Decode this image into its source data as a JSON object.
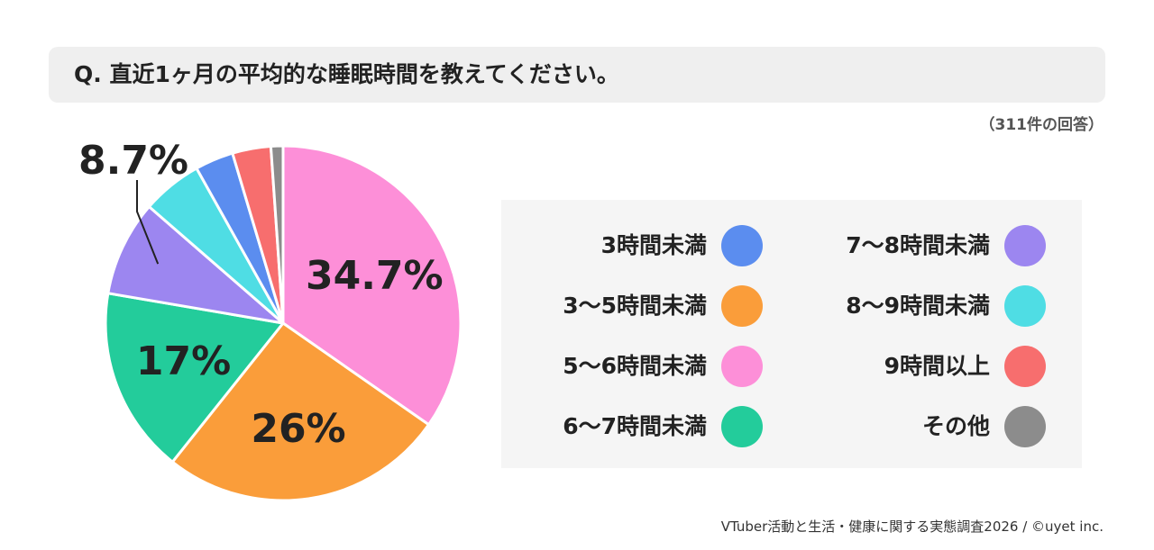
{
  "question": "Q. 直近1ヶ月の平均的な睡眠時間を教えてください。",
  "response_count": "（311件の回答）",
  "source": "VTuber活動と生活・健康に関する実態調査2026 / ©uyet inc.",
  "chart_data": {
    "type": "pie",
    "title": "",
    "categories": [
      "3時間未満",
      "3〜5時間未満",
      "5〜6時間未満",
      "6〜7時間未満",
      "7〜8時間未満",
      "8〜9時間未満",
      "9時間以上",
      "その他"
    ],
    "values": [
      3.5,
      26,
      34.7,
      17,
      8.7,
      5.5,
      3.5,
      1.1
    ],
    "colors": [
      "#5b8def",
      "#fa9d3a",
      "#fd8fd8",
      "#23cc9b",
      "#9c86f0",
      "#4fdde4",
      "#f76e6e",
      "#8c8c8c"
    ],
    "slice_labels": [
      {
        "category": "5〜6時間未満",
        "text": "34.7%"
      },
      {
        "category": "3〜5時間未満",
        "text": "26%"
      },
      {
        "category": "6〜7時間未満",
        "text": "17%"
      },
      {
        "category": "7〜8時間未満",
        "text": "8.7%"
      }
    ],
    "legend_position": "right"
  }
}
